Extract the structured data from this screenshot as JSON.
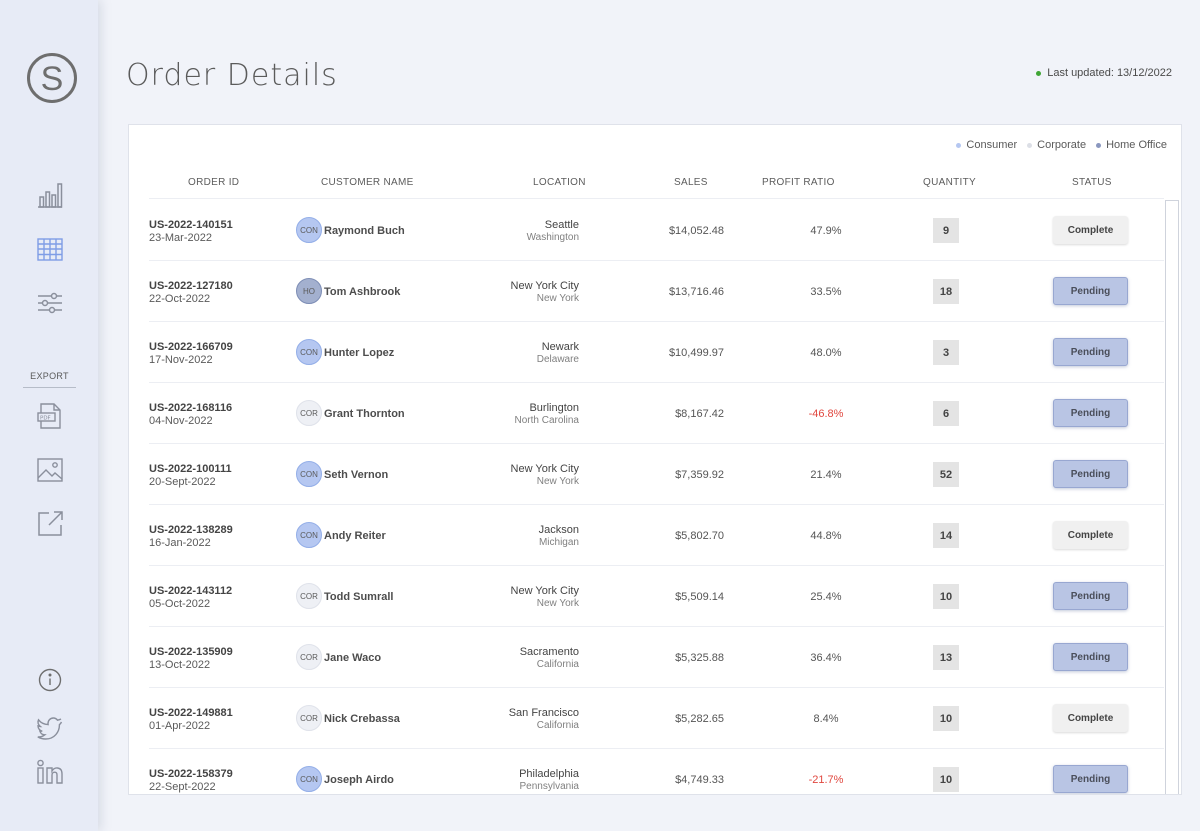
{
  "app": {
    "logo_letter": "S",
    "title": "Order Details",
    "last_updated": "Last updated: 13/12/2022",
    "status_color": "#3fa535"
  },
  "sidebar": {
    "items": [
      {
        "icon": "bar-chart-icon"
      },
      {
        "icon": "table-icon"
      },
      {
        "icon": "filter-sliders-icon"
      }
    ],
    "export_label": "EXPORT",
    "export_items": [
      {
        "icon": "pdf-icon"
      },
      {
        "icon": "image-icon"
      },
      {
        "icon": "share-external-icon"
      }
    ],
    "footer_items": [
      {
        "icon": "info-icon"
      },
      {
        "icon": "twitter-icon"
      },
      {
        "icon": "linkedin-icon"
      }
    ]
  },
  "legend": [
    {
      "label": "Consumer",
      "color": "#b5c7f1"
    },
    {
      "label": "Corporate",
      "color": "#dcdfe6"
    },
    {
      "label": "Home Office",
      "color": "#8a97bf"
    }
  ],
  "table": {
    "columns": [
      "ORDER ID",
      "CUSTOMER NAME",
      "LOCATION",
      "SALES",
      "PROFIT RATIO",
      "QUANTITY",
      "STATUS"
    ],
    "rows": [
      {
        "order_id": "US-2022-140151",
        "date": "23-Mar-2022",
        "segment": "CON",
        "customer": "Raymond Buch",
        "city": "Seattle",
        "state": "Washington",
        "sales": "$14,052.48",
        "profit": "47.9%",
        "quantity": "9",
        "status": "Complete"
      },
      {
        "order_id": "US-2022-127180",
        "date": "22-Oct-2022",
        "segment": "HO",
        "customer": "Tom Ashbrook",
        "city": "New York City",
        "state": "New York",
        "sales": "$13,716.46",
        "profit": "33.5%",
        "quantity": "18",
        "status": "Pending"
      },
      {
        "order_id": "US-2022-166709",
        "date": "17-Nov-2022",
        "segment": "CON",
        "customer": "Hunter Lopez",
        "city": "Newark",
        "state": "Delaware",
        "sales": "$10,499.97",
        "profit": "48.0%",
        "quantity": "3",
        "status": "Pending"
      },
      {
        "order_id": "US-2022-168116",
        "date": "04-Nov-2022",
        "segment": "COR",
        "customer": "Grant Thornton",
        "city": "Burlington",
        "state": "North Carolina",
        "sales": "$8,167.42",
        "profit": "-46.8%",
        "quantity": "6",
        "status": "Pending"
      },
      {
        "order_id": "US-2022-100111",
        "date": "20-Sept-2022",
        "segment": "CON",
        "customer": "Seth Vernon",
        "city": "New York City",
        "state": "New York",
        "sales": "$7,359.92",
        "profit": "21.4%",
        "quantity": "52",
        "status": "Pending"
      },
      {
        "order_id": "US-2022-138289",
        "date": "16-Jan-2022",
        "segment": "CON",
        "customer": "Andy Reiter",
        "city": "Jackson",
        "state": "Michigan",
        "sales": "$5,802.70",
        "profit": "44.8%",
        "quantity": "14",
        "status": "Complete"
      },
      {
        "order_id": "US-2022-143112",
        "date": "05-Oct-2022",
        "segment": "COR",
        "customer": "Todd Sumrall",
        "city": "New York City",
        "state": "New York",
        "sales": "$5,509.14",
        "profit": "25.4%",
        "quantity": "10",
        "status": "Pending"
      },
      {
        "order_id": "US-2022-135909",
        "date": "13-Oct-2022",
        "segment": "COR",
        "customer": "Jane Waco",
        "city": "Sacramento",
        "state": "California",
        "sales": "$5,325.88",
        "profit": "36.4%",
        "quantity": "13",
        "status": "Pending"
      },
      {
        "order_id": "US-2022-149881",
        "date": "01-Apr-2022",
        "segment": "COR",
        "customer": "Nick Crebassa",
        "city": "San Francisco",
        "state": "California",
        "sales": "$5,282.65",
        "profit": "8.4%",
        "quantity": "10",
        "status": "Complete"
      },
      {
        "order_id": "US-2022-158379",
        "date": "22-Sept-2022",
        "segment": "CON",
        "customer": "Joseph Airdo",
        "city": "Philadelphia",
        "state": "Pennsylvania",
        "sales": "$4,749.33",
        "profit": "-21.7%",
        "quantity": "10",
        "status": "Pending"
      }
    ]
  }
}
